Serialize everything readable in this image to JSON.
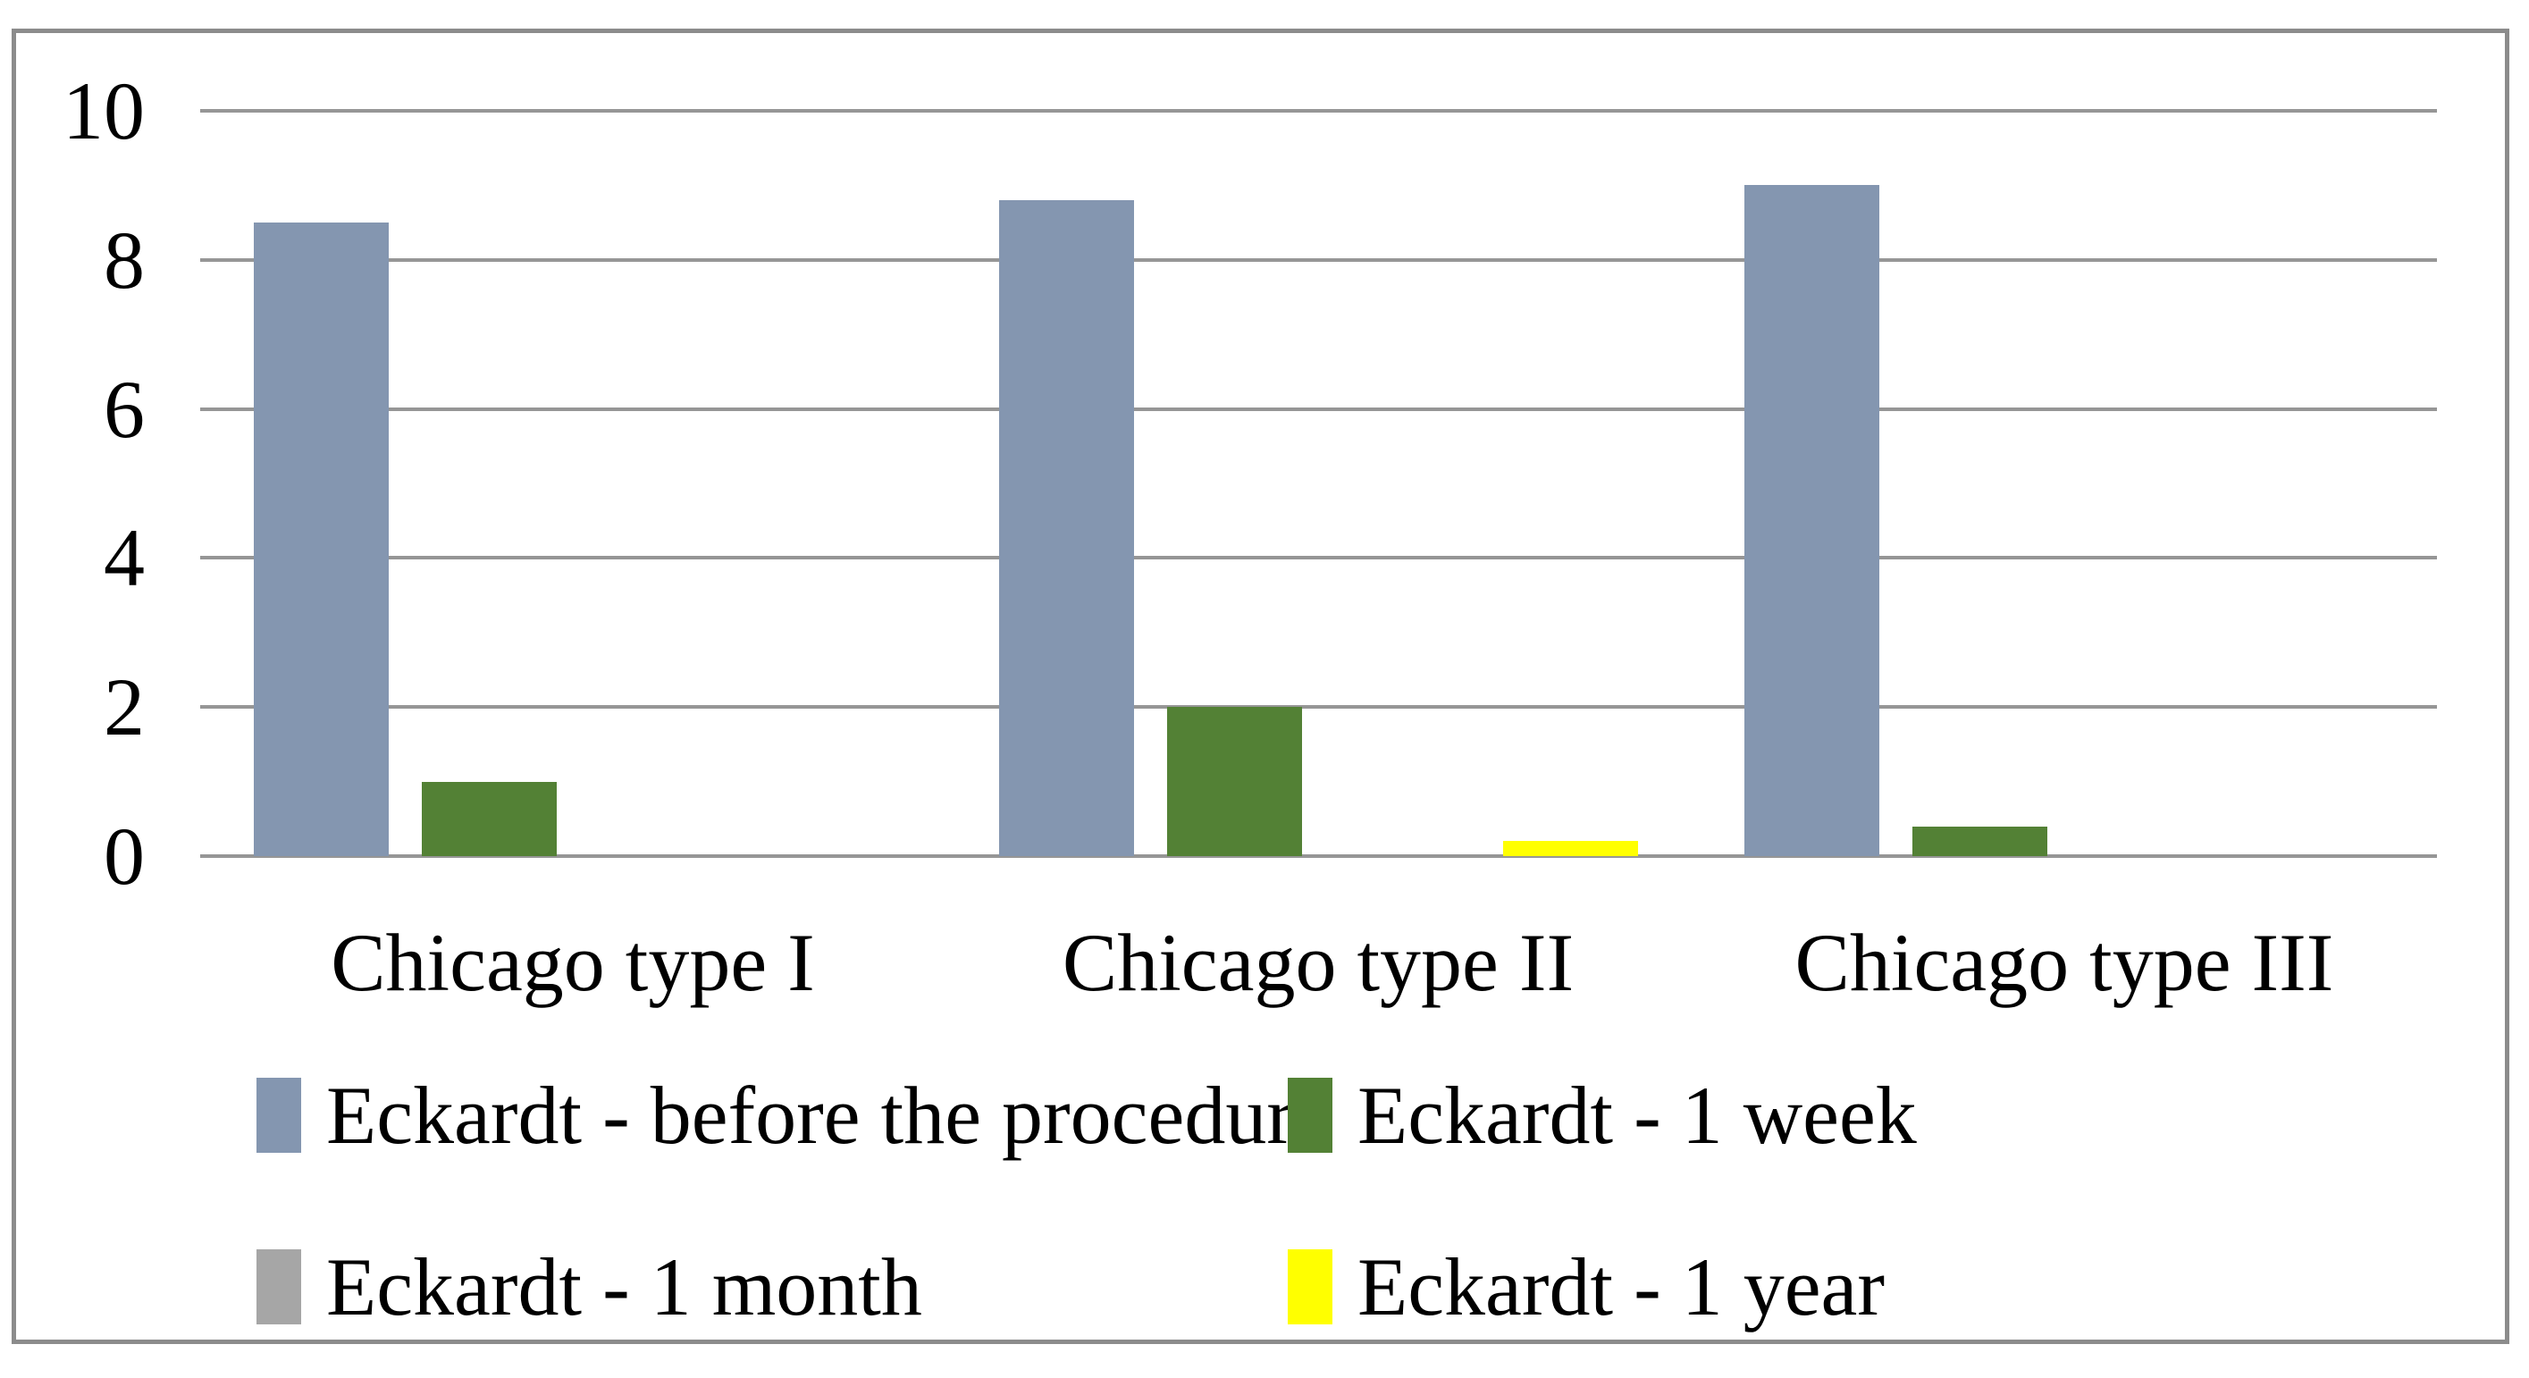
{
  "chart_data": {
    "type": "bar",
    "title": "",
    "xlabel": "",
    "ylabel": "",
    "categories": [
      "Chicago type I",
      "Chicago type II",
      "Chicago type III"
    ],
    "series": [
      {
        "name": "Eckardt - before the procedure",
        "color": "#8496B0",
        "values": [
          8.5,
          8.8,
          9.0
        ]
      },
      {
        "name": "Eckardt - 1 week",
        "color": "#538135",
        "values": [
          1.0,
          2.0,
          0.4
        ]
      },
      {
        "name": "Eckardt - 1 month",
        "color": "#A6A6A6",
        "values": [
          0,
          0,
          0
        ]
      },
      {
        "name": "Eckardt - 1 year",
        "color": "#FFFF00",
        "values": [
          0,
          0.2,
          0
        ]
      }
    ],
    "ylim": [
      0,
      10
    ],
    "yticks": [
      0,
      2,
      4,
      6,
      8,
      10
    ],
    "ytick_labels": [
      "0",
      "2",
      "4",
      "6",
      "8",
      "10"
    ],
    "grid": true,
    "gridline_color": "#969696",
    "axis_color": "#969696",
    "frame_border_color": "#8c8c8c",
    "text_color": "#000000",
    "legend_position": "bottom",
    "legend_rows": [
      [
        0,
        1
      ],
      [
        2,
        3
      ]
    ]
  }
}
